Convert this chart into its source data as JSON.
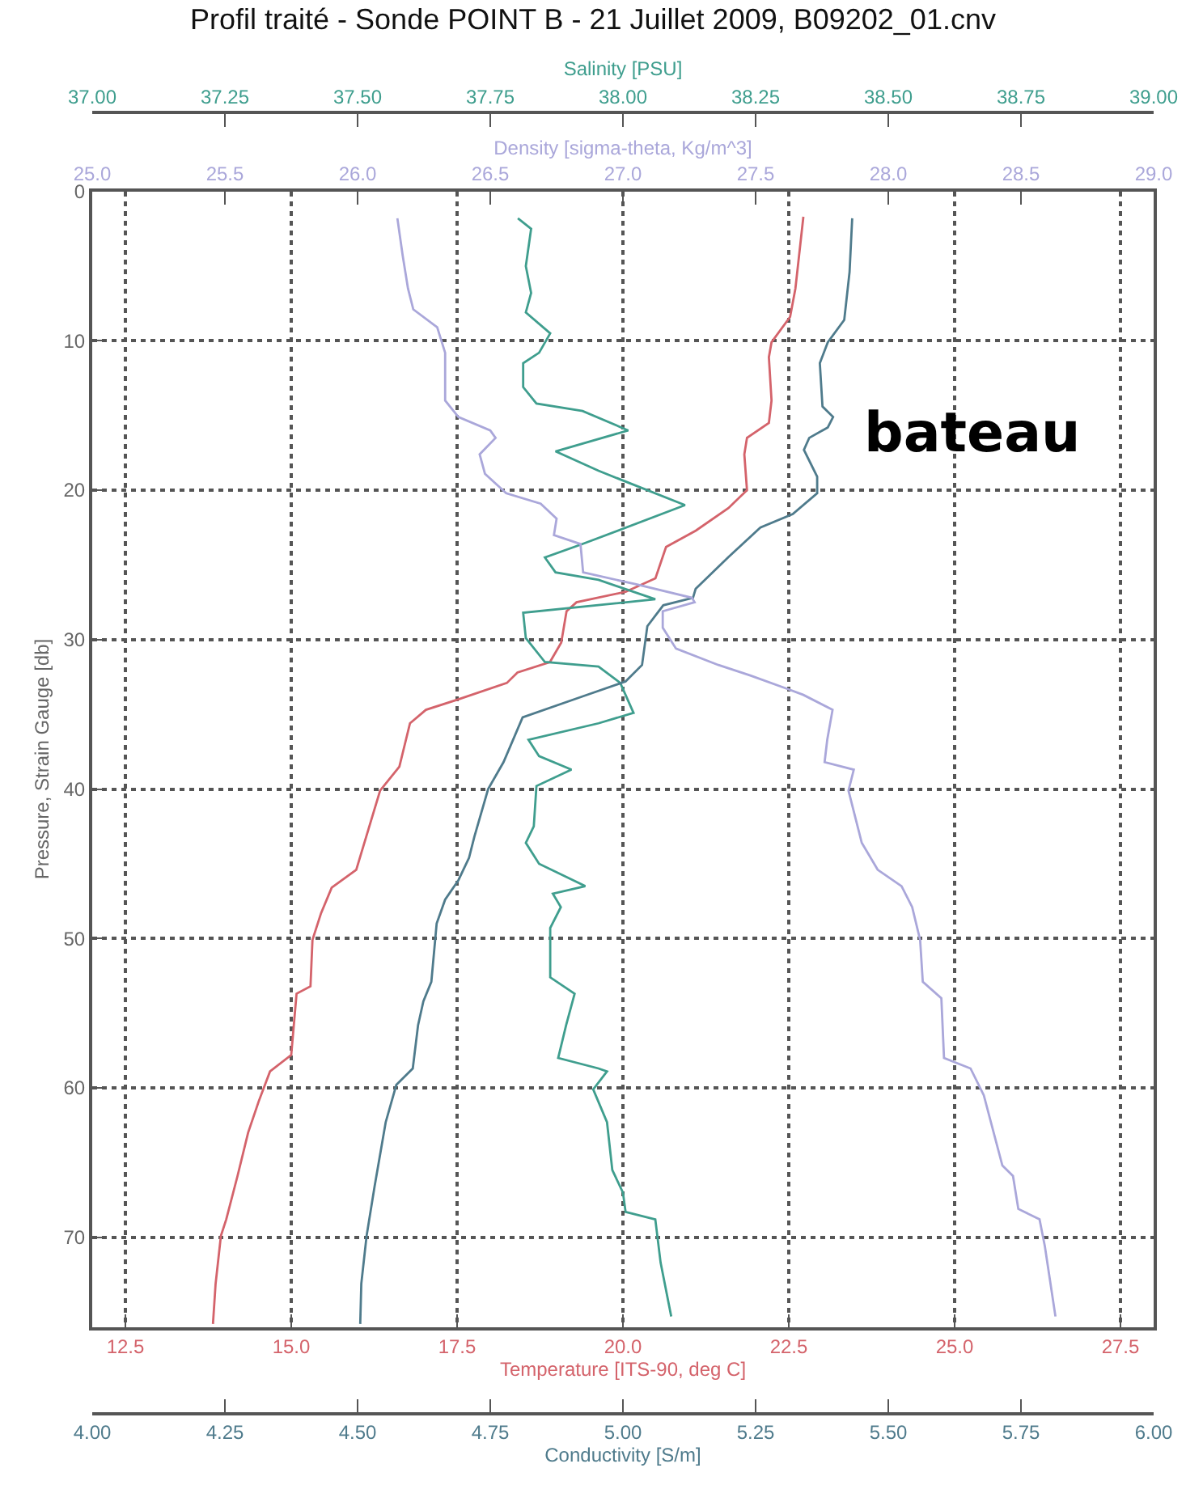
{
  "chart_data": [
    {
      "type": "line",
      "title": "Profil traité - Sonde POINT B - 21 Juillet 2009, B09202_01.cnv",
      "xlabel": "Temperature [ITS-90, deg C]",
      "x2label": "Salinity [PSU]",
      "ylabel": "Pressure, Strain Gauge [db]",
      "xlim": [
        12,
        28
      ],
      "xticks": [
        12.5,
        {
          "value": 15,
          "label": "15.0"
        },
        17.5,
        {
          "value": 20,
          "label": "20.0"
        },
        22.5,
        {
          "value": 25,
          "label": "25.0"
        },
        27.5
      ],
      "x2lim": [
        37,
        39
      ],
      "x2ticks": [
        {
          "value": 37,
          "label": "37.00"
        },
        {
          "value": 37.25,
          "label": "37.25"
        },
        {
          "value": 37.5,
          "label": "37.50"
        },
        {
          "value": 37.75,
          "label": "37.75"
        },
        {
          "value": 38,
          "label": "38.00"
        },
        {
          "value": 38.25,
          "label": "38.25"
        },
        {
          "value": 38.5,
          "label": "38.50"
        },
        {
          "value": 38.75,
          "label": "38.75"
        },
        {
          "value": 39,
          "label": "39.00"
        }
      ],
      "ylim": [
        76,
        0
      ],
      "yticks": [
        0,
        10,
        20,
        30,
        40,
        50,
        60,
        70
      ],
      "grid": true,
      "annotations": [
        "bateau"
      ],
      "series": [
        {
          "color": "#d4636b",
          "x": [
            22.72,
            22.6,
            22.52,
            22.24,
            22.2,
            22.24,
            22.2,
            21.87,
            21.83,
            21.87,
            21.59,
            21.1,
            20.65,
            20.49,
            20.04,
            19.3,
            19.15,
            19.07,
            18.9,
            18.41,
            18.25,
            17.52,
            17.03,
            16.79,
            16.63,
            16.34,
            15.98,
            15.61,
            15.45,
            15.32,
            15.29,
            15.08,
            15.0,
            14.68,
            14.51,
            14.35,
            14.19,
            14.02,
            13.94,
            13.86,
            13.82
          ],
          "values": [
            1.7,
            6.5,
            8.4,
            10.1,
            11.1,
            14.0,
            15.5,
            16.5,
            17.6,
            20.0,
            21.2,
            22.7,
            23.8,
            25.9,
            26.8,
            27.5,
            28.1,
            30.2,
            31.5,
            32.2,
            32.9,
            34.0,
            34.7,
            35.6,
            38.5,
            40.1,
            45.4,
            46.6,
            48.3,
            50.1,
            53.2,
            53.7,
            57.8,
            58.9,
            60.9,
            63.0,
            65.9,
            68.8,
            69.9,
            73.1,
            75.8
          ]
        },
        {
          "color": "#3f9e8e",
          "axis": "x2",
          "x": [
            37.802,
            37.827,
            37.817,
            37.827,
            37.817,
            37.863,
            37.842,
            37.812,
            37.812,
            37.837,
            37.924,
            38.01,
            37.873,
            37.954,
            38.117,
            37.924,
            37.853,
            37.873,
            37.954,
            38.061,
            37.812,
            37.817,
            37.853,
            37.954,
            37.995,
            38.02,
            37.954,
            37.822,
            37.842,
            37.903,
            37.837,
            37.832,
            37.817,
            37.842,
            37.929,
            37.868,
            37.883,
            37.863,
            37.863,
            37.909,
            37.893,
            37.878,
            37.954,
            37.97,
            37.944,
            37.97,
            37.98,
            38.0,
            38.005,
            38.061,
            38.071,
            38.091
          ],
          "values": [
            1.8,
            2.5,
            5.0,
            6.8,
            8.1,
            9.5,
            10.8,
            11.5,
            13.1,
            14.2,
            14.7,
            16.0,
            17.4,
            18.7,
            21.0,
            23.6,
            24.5,
            25.5,
            26.0,
            27.3,
            28.2,
            29.9,
            31.5,
            31.8,
            32.9,
            34.9,
            35.6,
            36.7,
            37.8,
            38.7,
            39.8,
            42.5,
            43.6,
            45.0,
            46.5,
            47.0,
            47.9,
            49.3,
            52.6,
            53.7,
            55.8,
            58.0,
            58.7,
            58.9,
            60.1,
            62.3,
            65.5,
            67.0,
            68.3,
            68.8,
            71.7,
            75.3
          ]
        }
      ]
    },
    {
      "type": "line",
      "xlabel": "Conductivity [S/m]",
      "x2label": "Density [sigma-theta, Kg/m^3]",
      "xlim": [
        4,
        6
      ],
      "xticks": [
        {
          "value": 4,
          "label": "4.00"
        },
        {
          "value": 4.25,
          "label": "4.25"
        },
        {
          "value": 4.5,
          "label": "4.50"
        },
        {
          "value": 4.75,
          "label": "4.75"
        },
        {
          "value": 5,
          "label": "5.00"
        },
        {
          "value": 5.25,
          "label": "5.25"
        },
        {
          "value": 5.5,
          "label": "5.50"
        },
        {
          "value": 5.75,
          "label": "5.75"
        },
        {
          "value": 6,
          "label": "6.00"
        }
      ],
      "x2lim": [
        25,
        29
      ],
      "x2ticks": [
        {
          "value": 25,
          "label": "25.0"
        },
        25.5,
        {
          "value": 26,
          "label": "26.0"
        },
        26.5,
        {
          "value": 27,
          "label": "27.0"
        },
        27.5,
        {
          "value": 28,
          "label": "28.0"
        },
        28.5,
        {
          "value": 29,
          "label": "29.0"
        }
      ],
      "ylim": [
        76,
        0
      ],
      "yticks": [
        0,
        10,
        20,
        30,
        40,
        50,
        60,
        70
      ],
      "tick_labels": "x",
      "series": [
        {
          "color": "#4f7b8c",
          "x": [
            5.432,
            5.427,
            5.417,
            5.386,
            5.371,
            5.376,
            5.396,
            5.386,
            5.351,
            5.341,
            5.366,
            5.366,
            5.32,
            5.259,
            5.198,
            5.137,
            5.132,
            5.076,
            5.046,
            5.036,
            5.005,
            4.924,
            4.811,
            4.775,
            4.746,
            4.72,
            4.71,
            4.69,
            4.665,
            4.649,
            4.639,
            4.624,
            4.614,
            4.604,
            4.573,
            4.553,
            4.532,
            4.517,
            4.507,
            4.505
          ],
          "values": [
            1.8,
            5.4,
            8.6,
            10.1,
            11.5,
            14.4,
            15.1,
            15.8,
            16.5,
            17.3,
            19.1,
            20.2,
            21.6,
            22.5,
            24.5,
            26.6,
            27.2,
            27.7,
            29.1,
            31.7,
            32.8,
            33.8,
            35.2,
            38.2,
            40.0,
            43.2,
            44.6,
            46.1,
            47.4,
            49.0,
            52.9,
            54.2,
            55.8,
            58.7,
            59.8,
            62.3,
            66.6,
            69.9,
            73.1,
            75.8
          ]
        },
        {
          "color": "#aaa7da",
          "axis": "x2",
          "x": [
            26.15,
            26.17,
            26.19,
            26.21,
            26.3,
            26.33,
            26.33,
            26.38,
            26.5,
            26.52,
            26.46,
            26.48,
            26.56,
            26.69,
            26.75,
            26.74,
            26.84,
            26.85,
            27.05,
            27.26,
            27.27,
            27.15,
            27.15,
            27.2,
            27.36,
            27.48,
            27.62,
            27.68,
            27.79,
            27.77,
            27.76,
            27.87,
            27.85,
            27.9,
            27.96,
            28.05,
            28.09,
            28.12,
            28.13,
            28.2,
            28.21,
            28.31,
            28.36,
            28.43,
            28.47,
            28.49,
            28.57,
            28.59,
            28.63
          ],
          "values": [
            1.8,
            4.3,
            6.5,
            7.9,
            9.1,
            10.8,
            14.0,
            15.1,
            16.0,
            16.5,
            17.6,
            18.9,
            20.2,
            20.9,
            21.9,
            23.0,
            23.6,
            25.5,
            26.3,
            27.2,
            27.5,
            28.1,
            29.2,
            30.6,
            31.7,
            32.4,
            33.3,
            33.7,
            34.7,
            36.7,
            38.2,
            38.7,
            40.1,
            43.6,
            45.4,
            46.5,
            47.9,
            50.1,
            52.9,
            54.0,
            58.0,
            58.7,
            60.5,
            65.2,
            65.9,
            68.1,
            68.8,
            70.6,
            75.3
          ]
        }
      ]
    }
  ]
}
